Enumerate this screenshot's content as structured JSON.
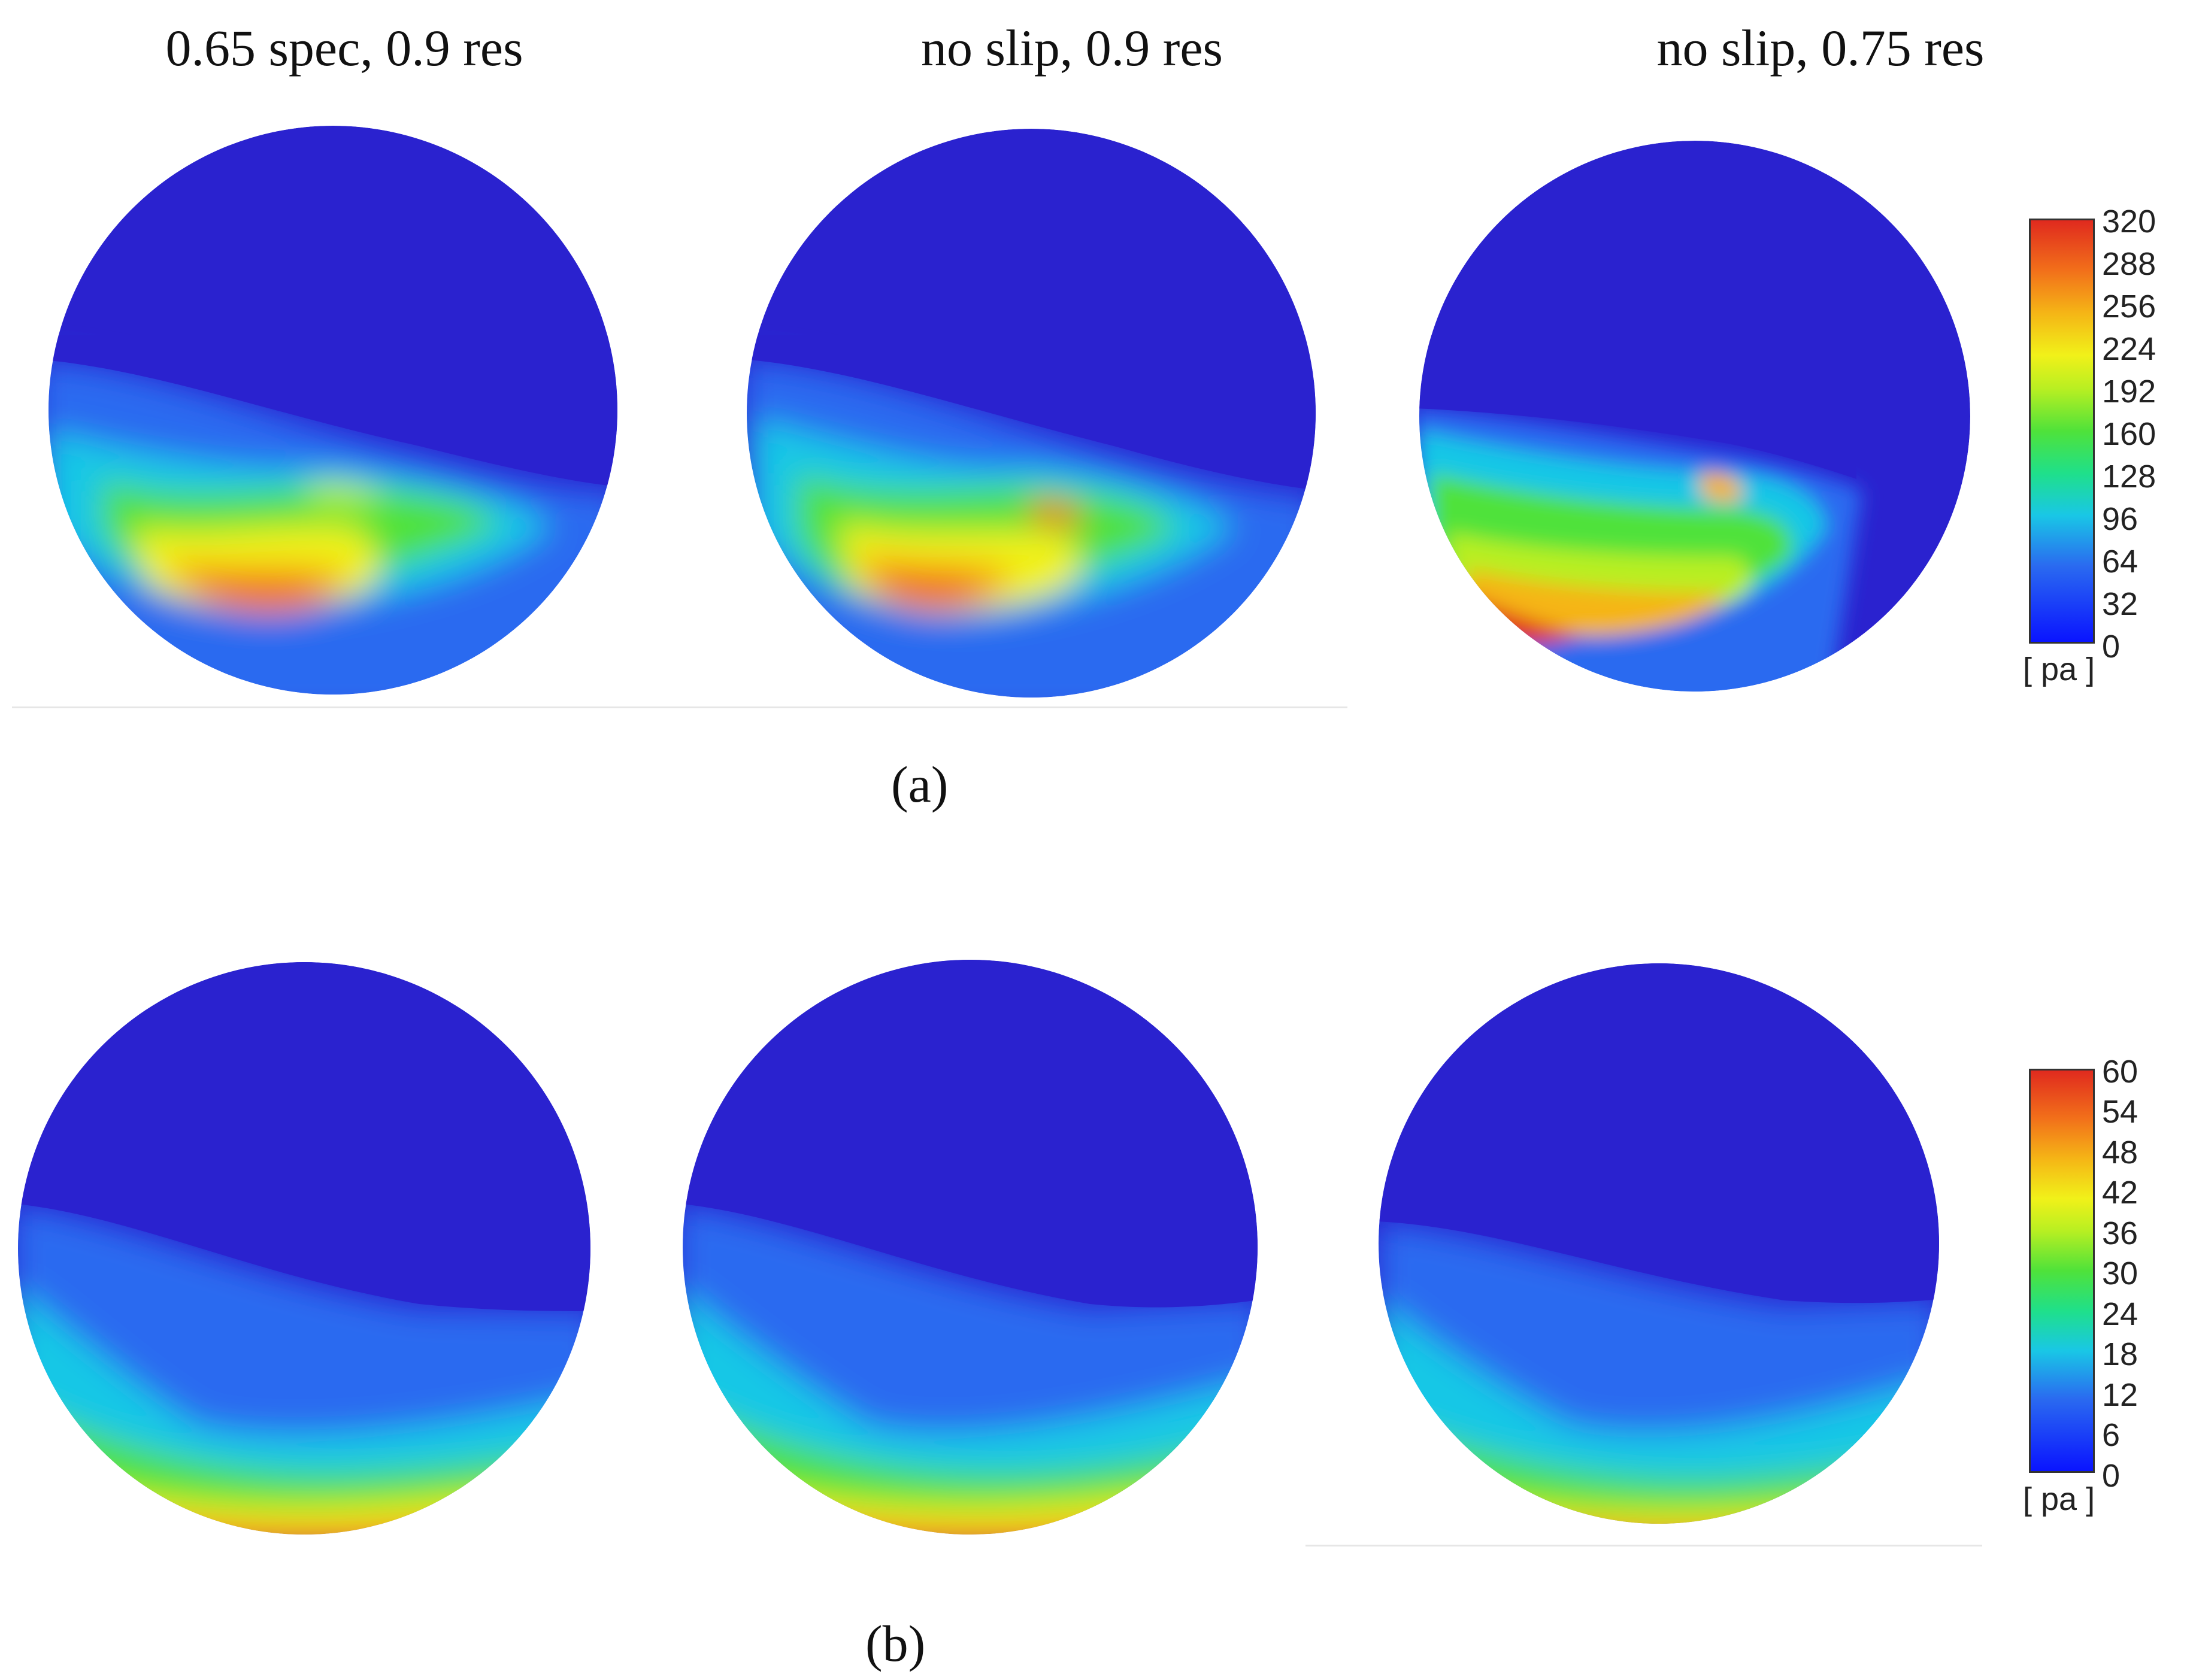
{
  "column_titles": [
    "0.65 spec, 0.9 res",
    "no slip, 0.9 res",
    "no slip, 0.75 res"
  ],
  "panels": [
    {
      "label": "(a)",
      "legend": {
        "ticks": [
          "320",
          "288",
          "256",
          "224",
          "192",
          "160",
          "128",
          "96",
          "64",
          "32",
          "0"
        ],
        "unit": "[ pa ]"
      }
    },
    {
      "label": "(b)",
      "legend": {
        "ticks": [
          "60",
          "54",
          "48",
          "42",
          "36",
          "30",
          "24",
          "18",
          "12",
          "6",
          "0"
        ],
        "unit": "[ pa ]"
      }
    }
  ],
  "colors": {
    "background_field": "#2a22cf",
    "scale": [
      "#0a14ff",
      "#2a6af0",
      "#19c7e6",
      "#1fe08a",
      "#4fe23a",
      "#b8ef22",
      "#f1f119",
      "#f5b516",
      "#f2701a",
      "#e02a1e"
    ]
  }
}
